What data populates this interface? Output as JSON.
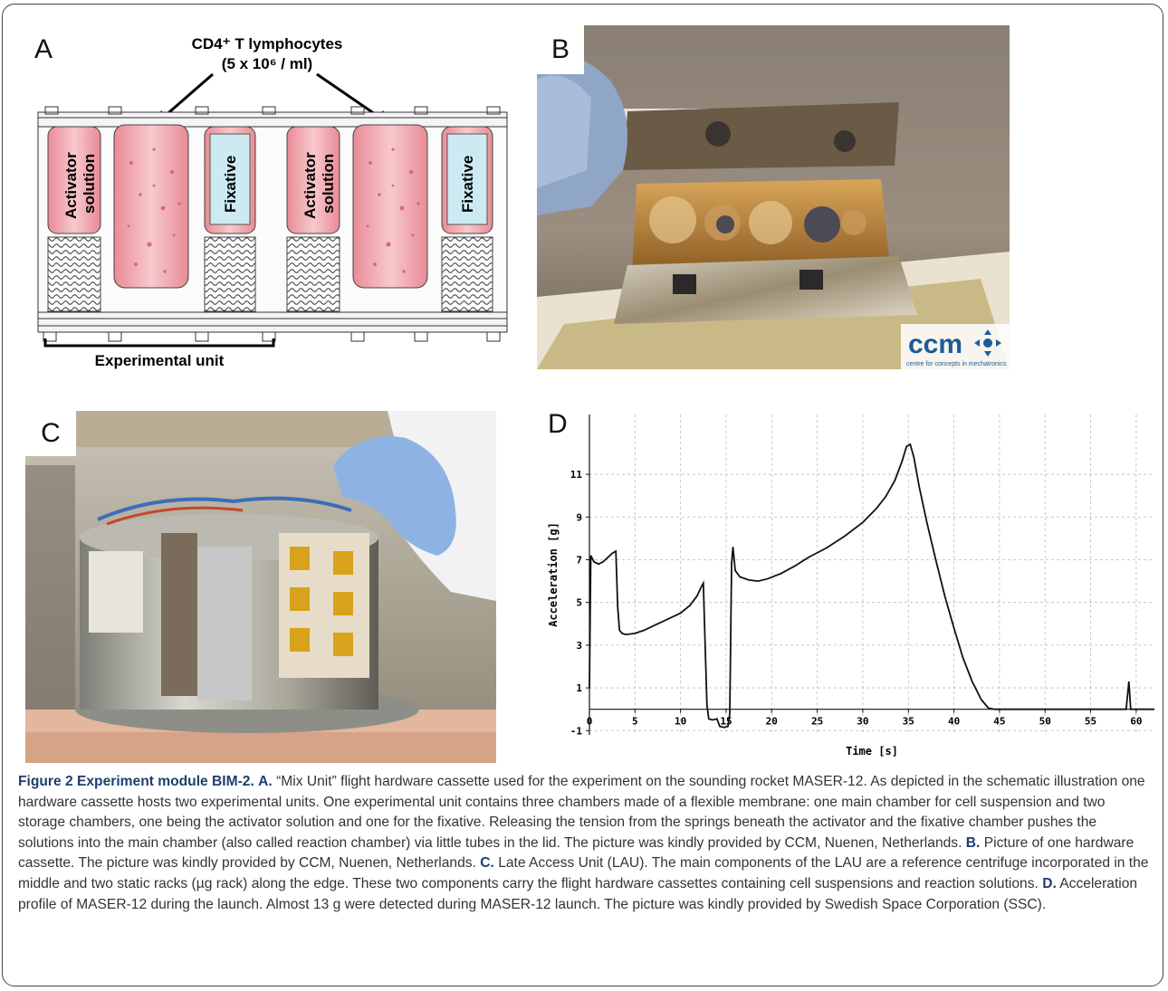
{
  "panels": {
    "a": {
      "letter": "A",
      "cells_line1": "CD4⁺ T lymphocytes",
      "cells_line2": "(5 x 10⁶ / ml)",
      "activator_line1": "Activator",
      "activator_line2": "solution",
      "fixative": "Fixative",
      "unit_label": "Experimental unit"
    },
    "b": {
      "letter": "B",
      "logo_text": "ccm",
      "logo_subtext": "centre for concepts in mechatronics"
    },
    "c": {
      "letter": "C"
    },
    "d": {
      "letter": "D"
    }
  },
  "chart_data": {
    "type": "line",
    "xlabel": "Time [s]",
    "ylabel": "Acceleration [g]",
    "xlim": [
      0,
      62
    ],
    "ylim": [
      -1.2,
      13.8
    ],
    "xticks": [
      0,
      5,
      10,
      15,
      20,
      25,
      30,
      35,
      40,
      45,
      50,
      55,
      60
    ],
    "yticks": [
      -1,
      1,
      3,
      5,
      7,
      9,
      11
    ],
    "grid": true,
    "series": [
      {
        "color": "#111111",
        "points": [
          [
            0,
            1
          ],
          [
            0.15,
            7.2
          ],
          [
            0.5,
            6.9
          ],
          [
            1,
            6.8
          ],
          [
            1.5,
            6.9
          ],
          [
            2,
            7.1
          ],
          [
            2.5,
            7.3
          ],
          [
            2.9,
            7.4
          ],
          [
            3.1,
            4.8
          ],
          [
            3.3,
            3.7
          ],
          [
            3.6,
            3.55
          ],
          [
            4,
            3.5
          ],
          [
            5,
            3.55
          ],
          [
            6,
            3.7
          ],
          [
            7,
            3.9
          ],
          [
            8,
            4.1
          ],
          [
            9,
            4.3
          ],
          [
            10,
            4.5
          ],
          [
            11,
            4.85
          ],
          [
            11.8,
            5.3
          ],
          [
            12.3,
            5.75
          ],
          [
            12.5,
            5.9
          ],
          [
            12.7,
            3.0
          ],
          [
            12.9,
            0.2
          ],
          [
            13.1,
            -0.45
          ],
          [
            13.5,
            -0.5
          ],
          [
            14,
            -0.45
          ],
          [
            14.3,
            -0.8
          ],
          [
            14.8,
            -0.85
          ],
          [
            15.2,
            -0.8
          ],
          [
            15.4,
            -0.2
          ],
          [
            15.6,
            6.8
          ],
          [
            15.75,
            7.6
          ],
          [
            16,
            6.5
          ],
          [
            16.5,
            6.2
          ],
          [
            17.5,
            6.05
          ],
          [
            18.5,
            6.0
          ],
          [
            19.5,
            6.1
          ],
          [
            21,
            6.35
          ],
          [
            22.5,
            6.7
          ],
          [
            24,
            7.1
          ],
          [
            26,
            7.55
          ],
          [
            28,
            8.1
          ],
          [
            30,
            8.75
          ],
          [
            31.5,
            9.4
          ],
          [
            32.5,
            9.95
          ],
          [
            33.5,
            10.7
          ],
          [
            34.3,
            11.6
          ],
          [
            34.8,
            12.3
          ],
          [
            35.2,
            12.4
          ],
          [
            35.6,
            11.8
          ],
          [
            36.2,
            10.4
          ],
          [
            37,
            8.8
          ],
          [
            38,
            7.0
          ],
          [
            39,
            5.3
          ],
          [
            40,
            3.8
          ],
          [
            41,
            2.4
          ],
          [
            42,
            1.3
          ],
          [
            43,
            0.45
          ],
          [
            43.8,
            0.05
          ],
          [
            44.5,
            0
          ],
          [
            50,
            0
          ],
          [
            58.5,
            0
          ],
          [
            58.9,
            0
          ],
          [
            59.2,
            1.3
          ],
          [
            59.4,
            0
          ],
          [
            62,
            0
          ]
        ]
      }
    ]
  },
  "caption": {
    "figure_label": "Figure 2 Experiment module BIM-2.",
    "a_label": "A.",
    "a_text": "“Mix Unit” flight hardware cassette used for the experiment on the sounding rocket MASER-12. As depicted in the schematic illustration one hardware cassette hosts two experimental units. One experimental unit contains three chambers made of a flexible membrane: one main chamber for cell suspension and two storage chambers, one being the activator solution and one for the fixative. Releasing the tension from the springs beneath the activator and the fixative chamber pushes the solutions into the main chamber (also called reaction chamber) via little tubes in the lid. The picture was kindly provided by CCM, Nuenen, Netherlands.",
    "b_label": "B.",
    "b_text": "Picture of one hardware cassette. The picture was kindly provided by CCM, Nuenen, Netherlands.",
    "c_label": "C.",
    "c_text": "Late Access Unit (LAU). The main components of the LAU are a reference centrifuge incorporated in the middle and two static racks (µg rack) along the edge. These two components carry the flight hardware cassettes containing cell suspensions and reaction solutions.",
    "d_label": "D.",
    "d_text": "Acceleration profile of MASER-12 during the launch. Almost 13 g were detected during MASER-12 launch. The picture was kindly provided by Swedish Space Corporation (SSC)."
  }
}
